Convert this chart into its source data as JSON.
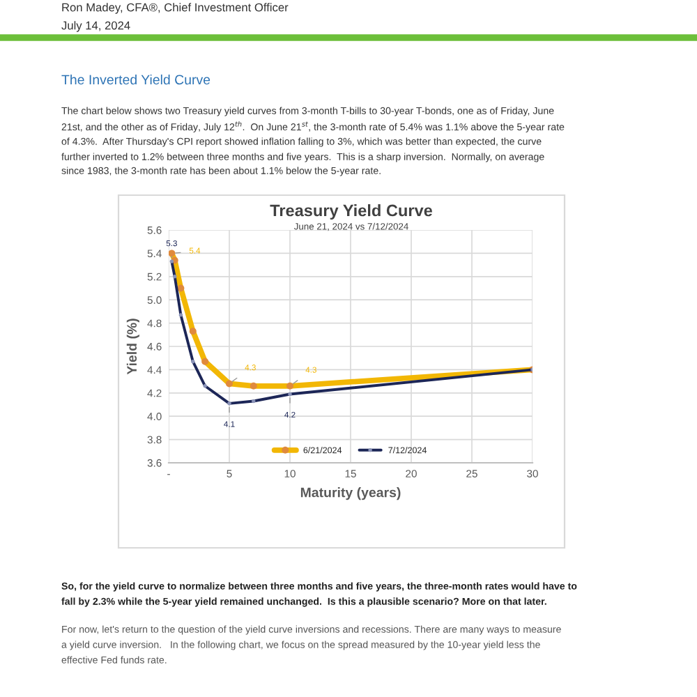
{
  "chart_data": {
    "type": "line",
    "title": "Treasury Yield Curve",
    "subtitle": "June 21, 2024 vs 7/12/2024",
    "xlabel": "Maturity (years)",
    "ylabel": "Yield (%)",
    "xlim": [
      0,
      30
    ],
    "xticks": [
      {
        "value": 0,
        "label": "-"
      },
      5,
      10,
      15,
      20,
      25,
      30
    ],
    "ylim": [
      3.6,
      5.6
    ],
    "yticks": [
      {
        "value": 3.6,
        "label": "3.6"
      },
      {
        "value": 3.8,
        "label": "3.8"
      },
      {
        "value": 4.0,
        "label": "4.0"
      },
      {
        "value": 4.2,
        "label": "4.2"
      },
      {
        "value": 4.4,
        "label": "4.4"
      },
      {
        "value": 4.6,
        "label": "4.6"
      },
      {
        "value": 4.8,
        "label": "4.8"
      },
      {
        "value": 5.0,
        "label": "5.0"
      },
      {
        "value": 5.2,
        "label": "5.2"
      },
      {
        "value": 5.4,
        "label": "5.4"
      },
      {
        "value": 5.6,
        "label": "5.6"
      }
    ],
    "grid": true,
    "legend": "bottom",
    "marker": "circle",
    "line_style": "solid",
    "series": [
      {
        "name": "6/21/2024",
        "color": "#f2b705",
        "x": [
          0.25,
          0.5,
          1,
          2,
          3,
          5,
          7,
          10,
          30
        ],
        "values": [
          5.4,
          5.34,
          5.1,
          4.73,
          4.47,
          4.28,
          4.26,
          4.26,
          4.4
        ],
        "value_labels": [
          "5.4",
          null,
          null,
          null,
          null,
          "4.3",
          null,
          "4.3",
          null
        ]
      },
      {
        "name": "7/12/2024",
        "color": "#1c2657",
        "x": [
          0.25,
          0.5,
          1,
          2,
          3,
          5,
          7,
          10,
          30
        ],
        "values": [
          5.33,
          5.2,
          4.87,
          4.47,
          4.26,
          4.11,
          4.13,
          4.19,
          4.4
        ],
        "value_labels": [
          "5.3",
          null,
          null,
          null,
          null,
          "4.1",
          null,
          "4.2",
          null
        ]
      }
    ],
    "annotations": [
      "Ron Madey, CFA®, Chief Investment Officer",
      "July 14, 2024",
      "The Inverted Yield Curve",
      "The chart below shows two Treasury yield curves from 3-month T-bills to 30-year T-bonds, one as of Friday, June",
      "21st, and the other as of Friday, July 12$^{th}$.  On June 21$^{st}$, the 3-month rate of 5.4% was 1.1% above the 5-year rate",
      "of 4.3%.  After Thursday's CPI report showed inflation falling to 3%, which was better than expected, the curve",
      "further inverted to 1.2% between three months and five years.  This is a sharp inversion.  Normally, on average",
      "since 1983, the 3-month rate has been about 1.1% below the 5-year rate.",
      "So, for the yield curve to normalize between three months and five years, the three-month rates would have to",
      "fall by 2.3% while the 5-year yield remained unchanged.  Is this a plausible scenario? More on that later.",
      "For now, let's return to the question of the yield curve inversions and recessions. There are many ways to measure",
      "a yield curve inversion.   In the following chart, we focus on the spread measured by the 10-year yield less the",
      "effective Fed funds rate."
    ]
  }
}
